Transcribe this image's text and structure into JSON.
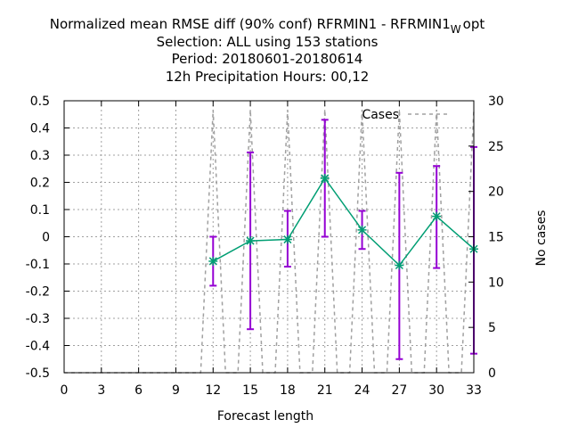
{
  "chart_data": {
    "type": "line",
    "title_lines": [
      {
        "text": "Normalized mean RMSE diff (90% conf) RFRMIN1 - RFRMIN1",
        "subscript": "W",
        "suffix": "opt"
      },
      {
        "text": "Selection: ALL using   153 stations"
      },
      {
        "text": "Period: 20180601-20180614"
      },
      {
        "text": "12h Precipitation   Hours:  00,12"
      }
    ],
    "xlabel": "Forecast length",
    "ylabel": "",
    "y2label": "No cases",
    "xlim": [
      0,
      33
    ],
    "ylim": [
      -0.5,
      0.5
    ],
    "y2lim": [
      0,
      30
    ],
    "xticks": [
      0,
      3,
      6,
      9,
      12,
      15,
      18,
      21,
      24,
      27,
      30,
      33
    ],
    "yticks": [
      -0.5,
      -0.4,
      -0.3,
      -0.2,
      -0.1,
      0,
      0.1,
      0.2,
      0.3,
      0.4,
      0.5
    ],
    "y2ticks": [
      0,
      5,
      10,
      15,
      20,
      25,
      30
    ],
    "grid": true,
    "legend_position": "top-right",
    "series": [
      {
        "name": "",
        "axis": "y",
        "color": "#009e73",
        "x": [
          12,
          15,
          18,
          21,
          24,
          27,
          30,
          33
        ],
        "values": [
          -0.09,
          -0.015,
          -0.01,
          0.215,
          0.025,
          -0.105,
          0.075,
          -0.045
        ],
        "error_low": [
          -0.18,
          -0.34,
          -0.11,
          0.0,
          -0.045,
          -0.45,
          -0.115,
          -0.43
        ],
        "error_high": [
          0.0,
          0.31,
          0.095,
          0.43,
          0.095,
          0.235,
          0.26,
          0.33
        ],
        "error_color": "#9400d3"
      },
      {
        "name": "Cases",
        "axis": "y2",
        "color": "#a0a0a0",
        "dash": true,
        "x": [
          0,
          3,
          6,
          9,
          11,
          12,
          13,
          14,
          15,
          16,
          17,
          18,
          19,
          20,
          21,
          22,
          23,
          24,
          25,
          26,
          27,
          28,
          29,
          30,
          31,
          32,
          33
        ],
        "values": [
          0,
          0,
          0,
          0,
          0,
          29,
          0,
          0,
          29,
          0,
          0,
          29,
          0,
          0,
          29,
          0,
          0,
          29,
          0,
          0,
          29,
          0,
          0,
          29,
          0,
          0,
          29
        ]
      }
    ]
  }
}
